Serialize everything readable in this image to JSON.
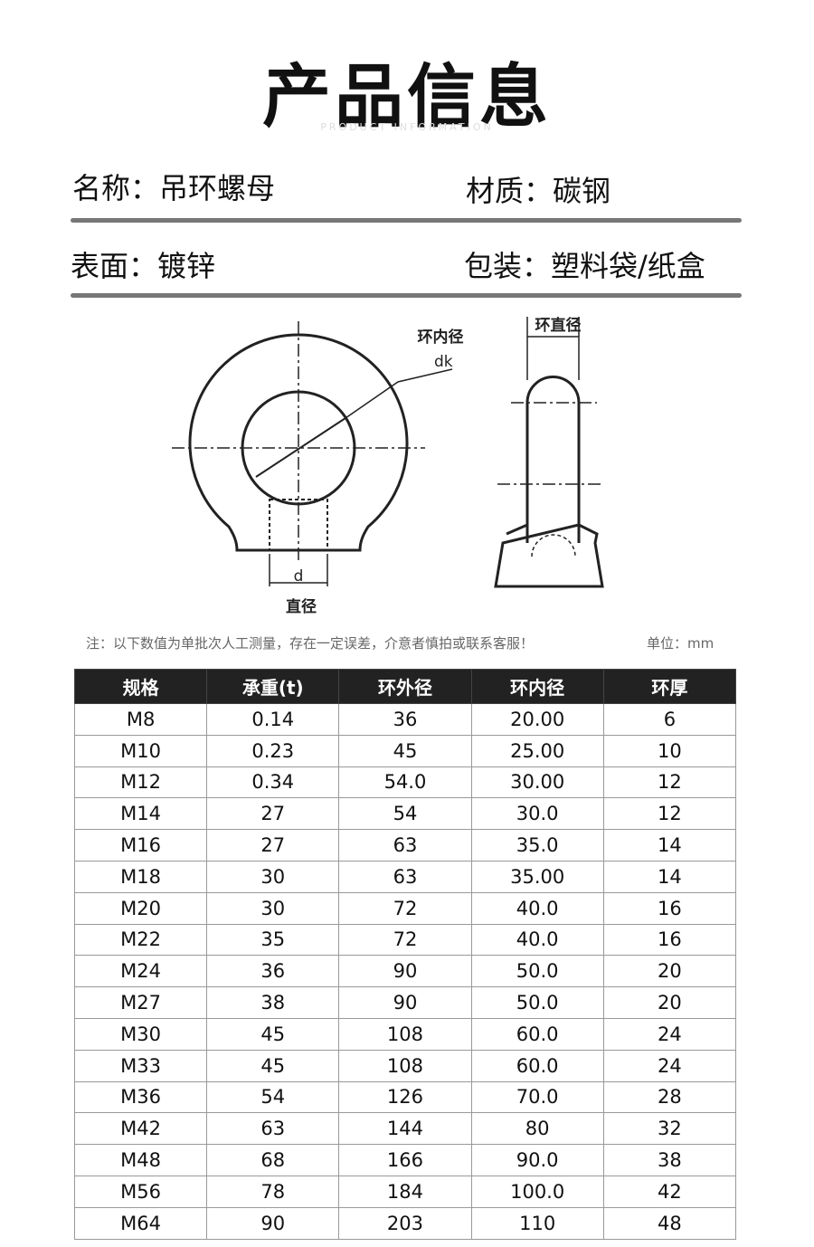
{
  "header": {
    "title": "产品信息",
    "subtitle": "PRODUCT INFORMATION"
  },
  "info": [
    {
      "label": "名称：",
      "value": "吊环螺母"
    },
    {
      "label": "材质：",
      "value": "碳钢"
    },
    {
      "label": "表面：",
      "value": "镀锌"
    },
    {
      "label": "包装：",
      "value": "塑料袋/纸盒"
    }
  ],
  "diagram": {
    "inner_diameter": "环内径",
    "dk": "dk",
    "d": "d",
    "diameter": "直径",
    "ring_diameter": "环直径"
  },
  "note": "注：以下数值为单批次人工测量，存在一定误差，介意者慎拍或联系客服！",
  "unit": "单位：mm",
  "table": {
    "headers": [
      "规格",
      "承重(t)",
      "环外径",
      "环内径",
      "环厚"
    ],
    "rows": [
      [
        "M8",
        "0.14",
        "36",
        "20.00",
        "6"
      ],
      [
        "M10",
        "0.23",
        "45",
        "25.00",
        "10"
      ],
      [
        "M12",
        "0.34",
        "54.0",
        "30.00",
        "12"
      ],
      [
        "M14",
        "27",
        "54",
        "30.0",
        "12"
      ],
      [
        "M16",
        "27",
        "63",
        "35.0",
        "14"
      ],
      [
        "M18",
        "30",
        "63",
        "35.00",
        "14"
      ],
      [
        "M20",
        "30",
        "72",
        "40.0",
        "16"
      ],
      [
        "M22",
        "35",
        "72",
        "40.0",
        "16"
      ],
      [
        "M24",
        "36",
        "90",
        "50.0",
        "20"
      ],
      [
        "M27",
        "38",
        "90",
        "50.0",
        "20"
      ],
      [
        "M30",
        "45",
        "108",
        "60.0",
        "24"
      ],
      [
        "M33",
        "45",
        "108",
        "60.0",
        "24"
      ],
      [
        "M36",
        "54",
        "126",
        "70.0",
        "28"
      ],
      [
        "M42",
        "63",
        "144",
        "80",
        "32"
      ],
      [
        "M48",
        "68",
        "166",
        "90.0",
        "38"
      ],
      [
        "M56",
        "78",
        "184",
        "100.0",
        "42"
      ],
      [
        "M64",
        "90",
        "203",
        "110",
        "48"
      ]
    ]
  }
}
